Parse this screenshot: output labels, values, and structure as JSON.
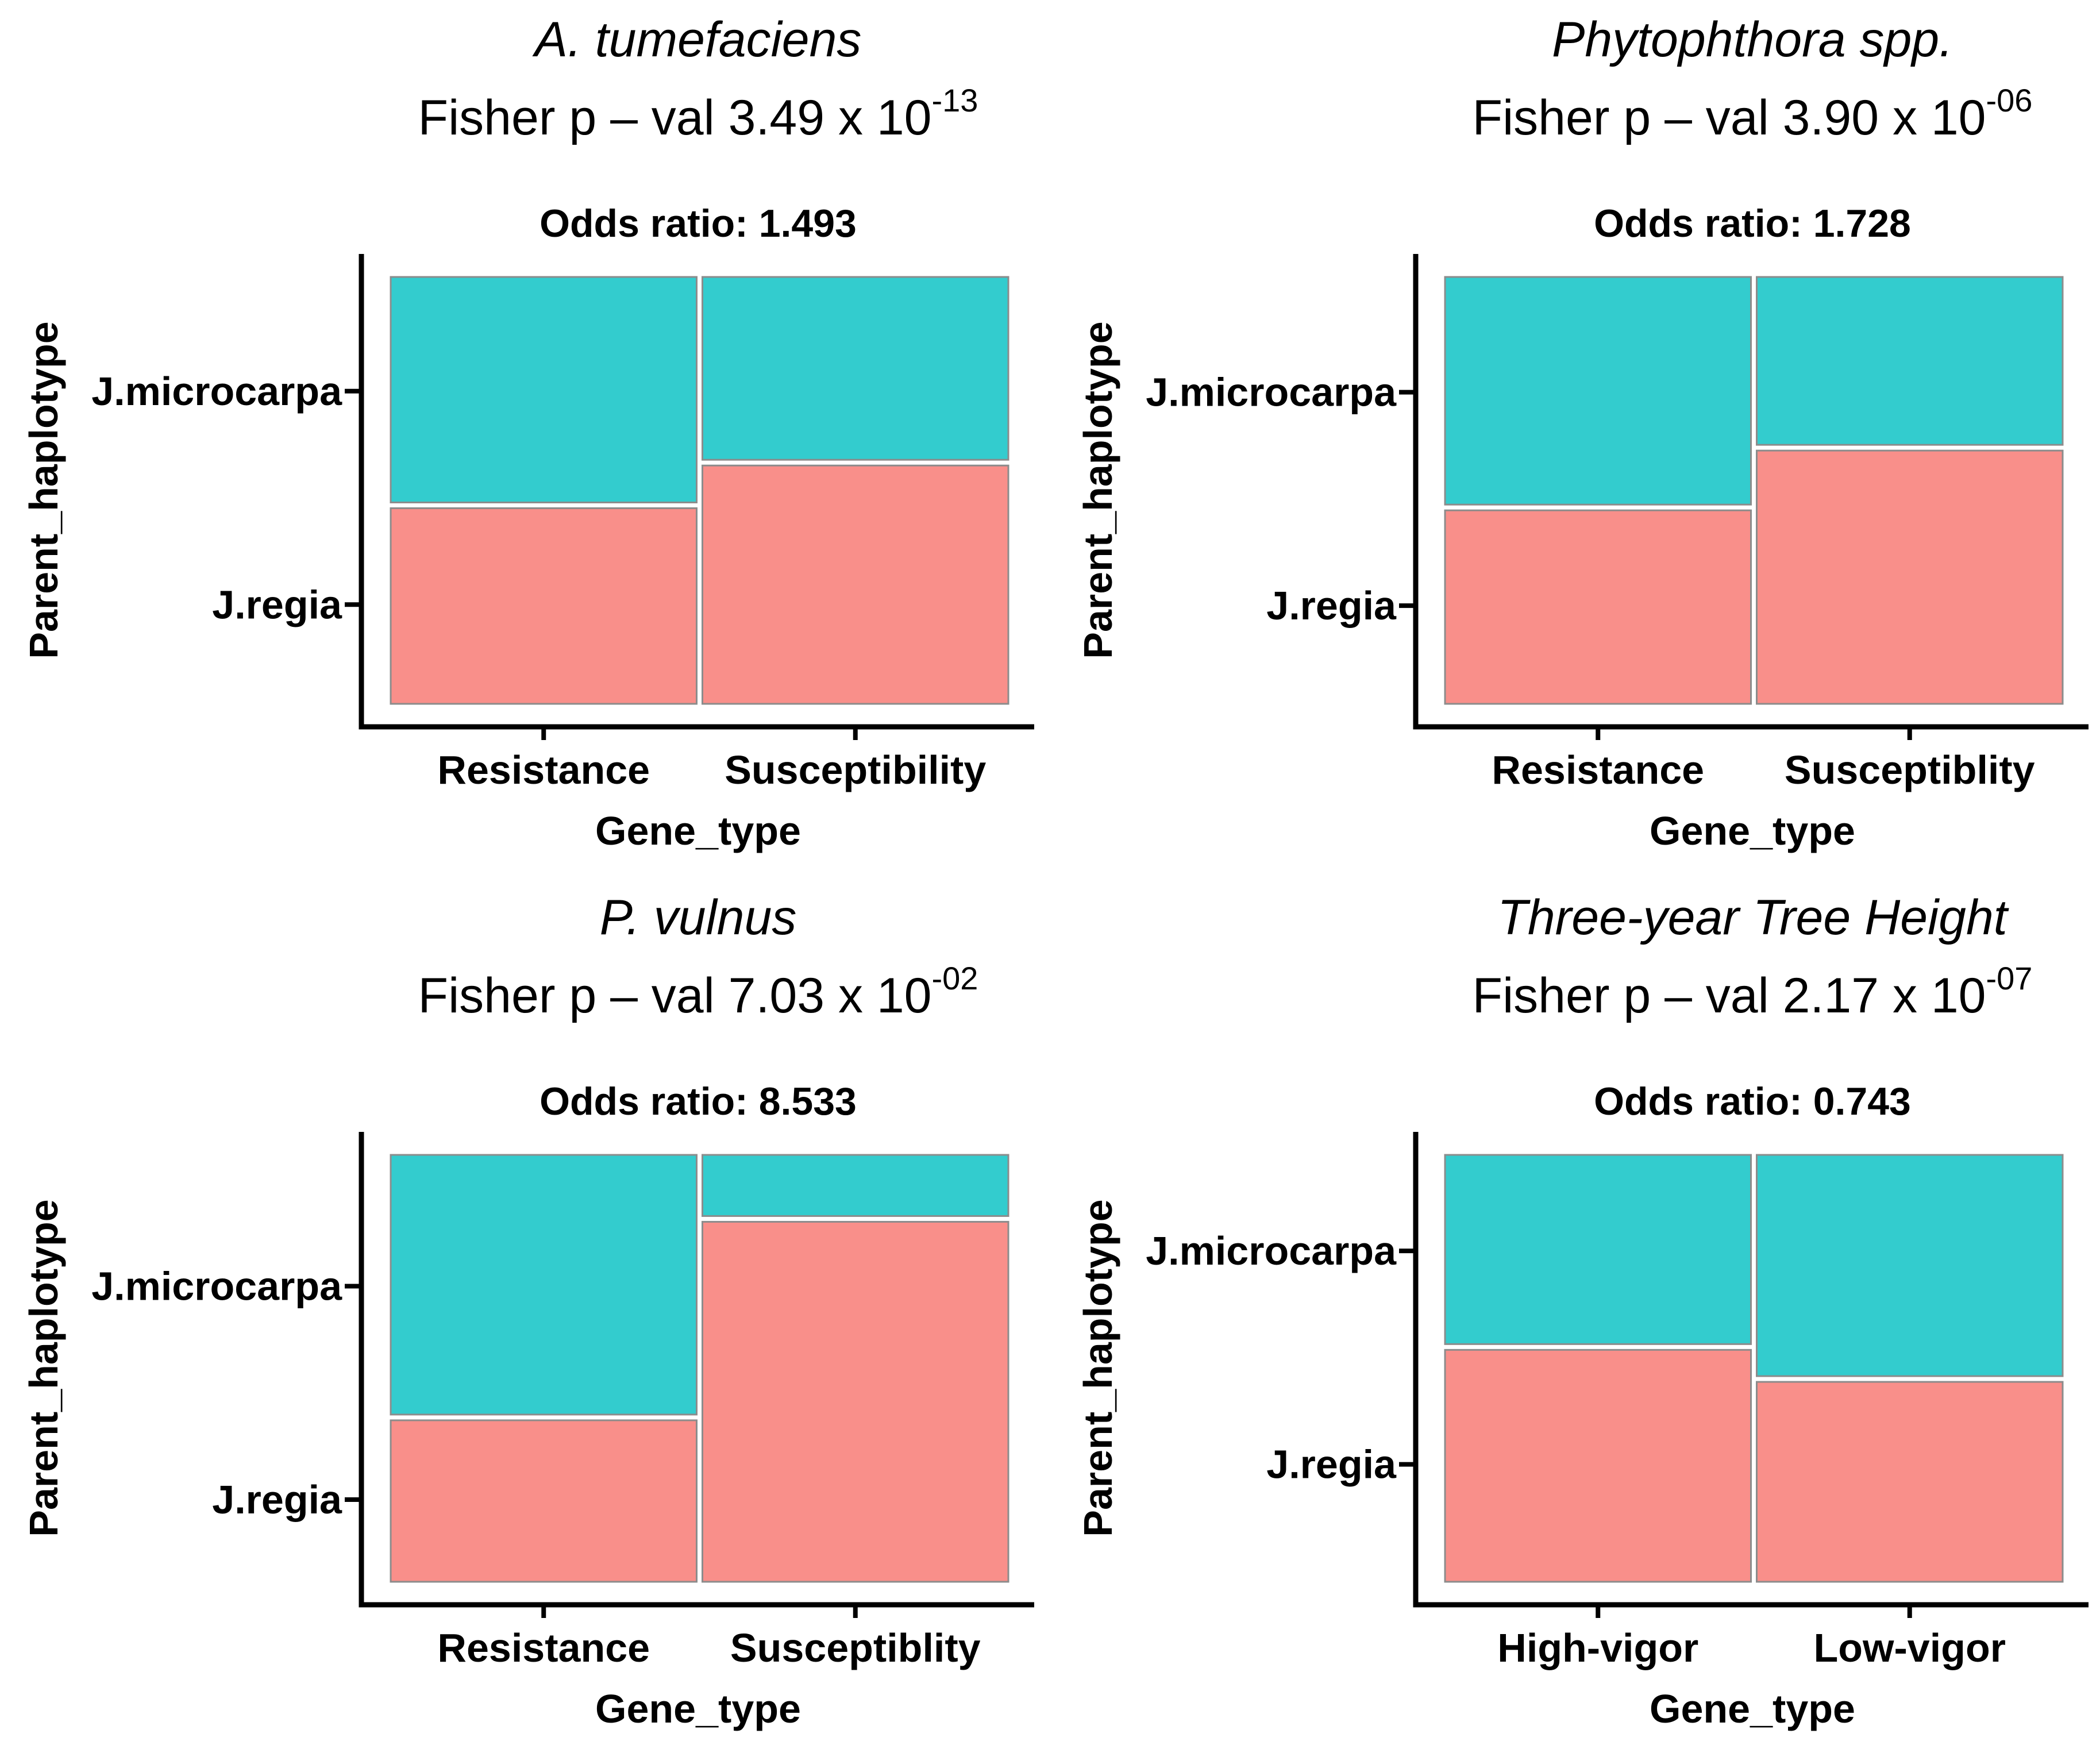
{
  "figure": {
    "fisher_prefix": "Fisher p – val",
    "times_ten": "x 10"
  },
  "colors": {
    "j_microcarpa": "#33CCCE",
    "j_regia": "#F98F8A",
    "axis": "#000000"
  },
  "chart_data": [
    {
      "type": "mosaic",
      "title": "A. tumefaciens",
      "fisher_mantissa": "3.49",
      "fisher_exponent": "-13",
      "subtitle": "Odds ratio: 1.493",
      "xlabel": "Gene_type",
      "ylabel": "Parent_haplotype",
      "categories": [
        "Resistance",
        "Susceptibility"
      ],
      "y_categories": [
        "J.microcarpa",
        "J.regia"
      ],
      "series": [
        {
          "name": "J.microcarpa",
          "values": [
            0.535,
            0.435
          ]
        },
        {
          "name": "J.regia",
          "values": [
            0.465,
            0.565
          ]
        }
      ]
    },
    {
      "type": "mosaic",
      "title": "Phytophthora spp.",
      "fisher_mantissa": "3.90",
      "fisher_exponent": "-06",
      "subtitle": "Odds ratio: 1.728",
      "xlabel": "Gene_type",
      "ylabel": "Parent_haplotype",
      "categories": [
        "Resistance",
        "Susceptiblity"
      ],
      "y_categories": [
        "J.microcarpa",
        "J.regia"
      ],
      "series": [
        {
          "name": "J.microcarpa",
          "values": [
            0.54,
            0.4
          ]
        },
        {
          "name": "J.regia",
          "values": [
            0.46,
            0.6
          ]
        }
      ]
    },
    {
      "type": "mosaic",
      "title": "P. vulnus",
      "fisher_mantissa": "7.03",
      "fisher_exponent": "-02",
      "subtitle": "Odds ratio: 8.533",
      "xlabel": "Gene_type",
      "ylabel": "Parent_haplotype",
      "categories": [
        "Resistance",
        "Susceptiblity"
      ],
      "y_categories": [
        "J.microcarpa",
        "J.regia"
      ],
      "series": [
        {
          "name": "J.microcarpa",
          "values": [
            0.615,
            0.15
          ]
        },
        {
          "name": "J.regia",
          "values": [
            0.385,
            0.85
          ]
        }
      ]
    },
    {
      "type": "mosaic",
      "title": "Three-year Tree Height",
      "fisher_mantissa": "2.17",
      "fisher_exponent": "-07",
      "subtitle": "Odds ratio: 0.743",
      "xlabel": "Gene_type",
      "ylabel": "Parent_haplotype",
      "categories": [
        "High-vigor",
        "Low-vigor"
      ],
      "y_categories": [
        "J.microcarpa",
        "J.regia"
      ],
      "series": [
        {
          "name": "J.microcarpa",
          "values": [
            0.45,
            0.525
          ]
        },
        {
          "name": "J.regia",
          "values": [
            0.55,
            0.475
          ]
        }
      ]
    }
  ]
}
